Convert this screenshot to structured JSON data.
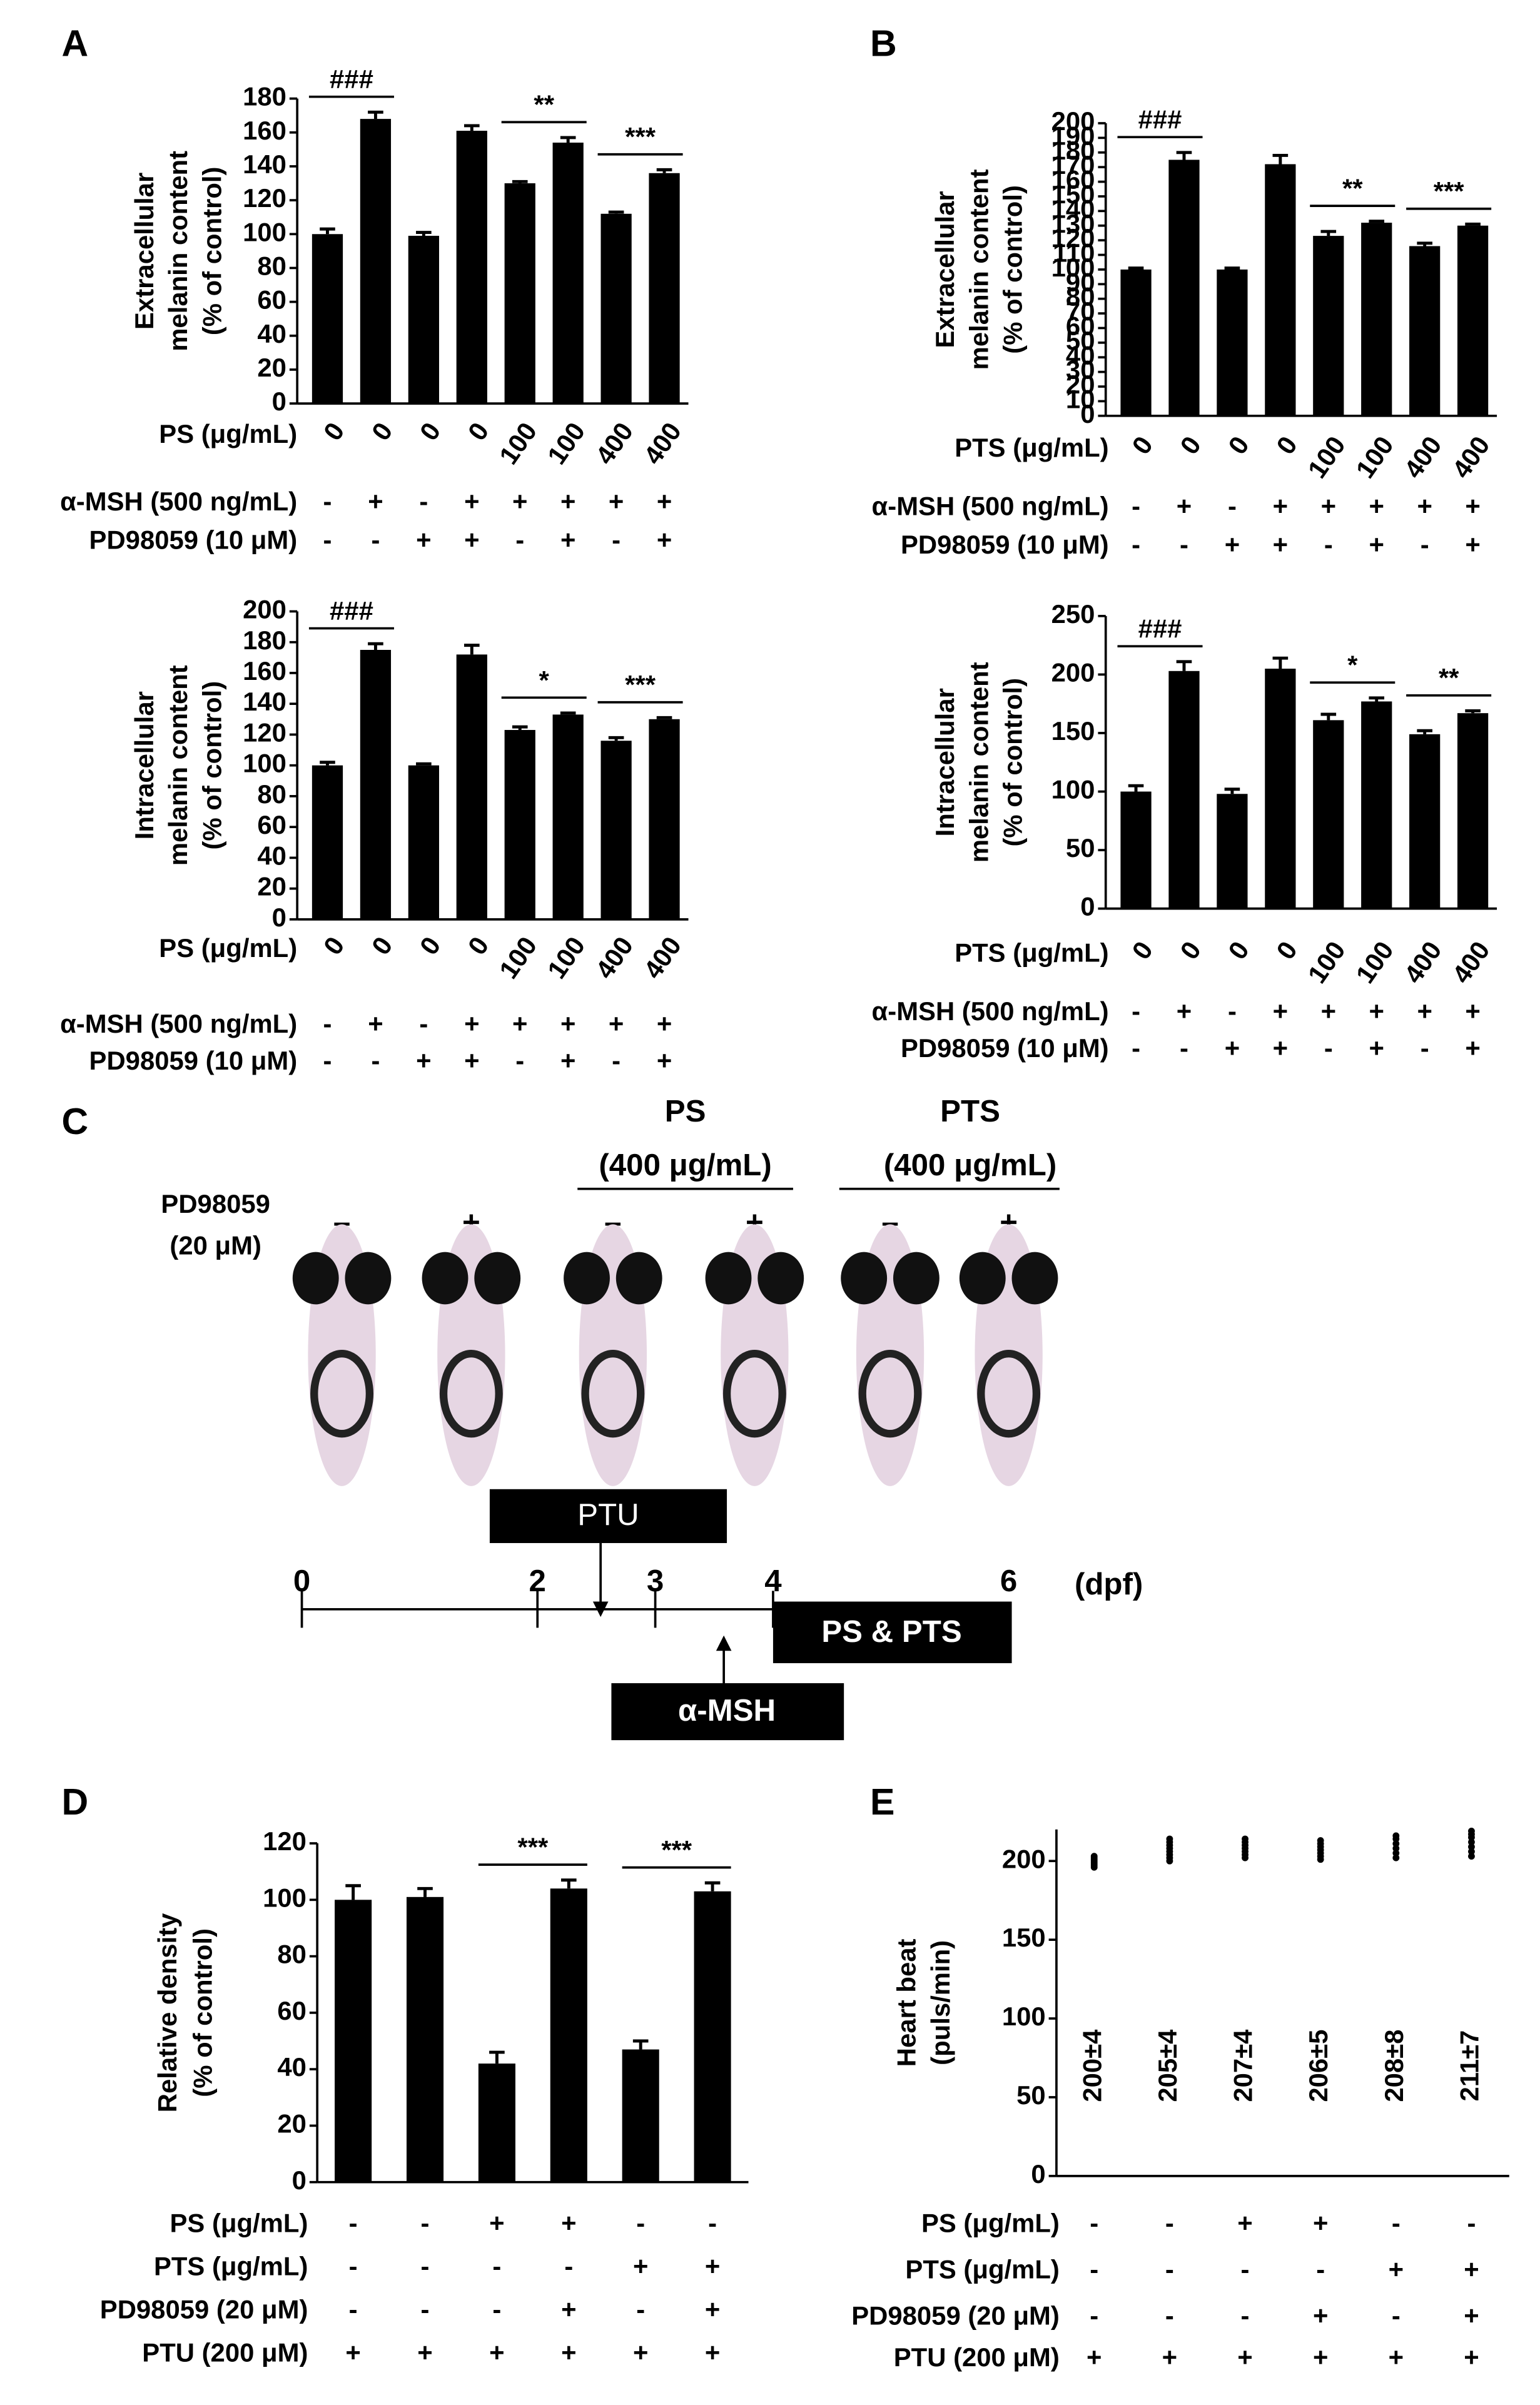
{
  "panel_labels": [
    "A",
    "B",
    "C",
    "D",
    "E"
  ],
  "chart_data": [
    {
      "type": "bar",
      "ylabel": [
        "Extracellular",
        "melanin content",
        "(% of control)"
      ],
      "color": "#000000",
      "values": [
        100,
        168,
        99,
        161,
        130,
        154,
        112,
        136
      ],
      "errors": [
        3,
        4,
        2,
        3,
        1,
        3,
        1,
        2
      ],
      "ylim": [
        0,
        180
      ],
      "yticks": [
        0,
        20,
        40,
        60,
        80,
        100,
        120,
        140,
        160,
        180
      ],
      "annotations": [
        {
          "label": "###",
          "pair": [
            0,
            1
          ]
        },
        {
          "label": "**",
          "pair": [
            4,
            5
          ]
        },
        {
          "label": "***",
          "pair": [
            6,
            7
          ]
        }
      ],
      "treatments": [
        {
          "label": "PS (μg/mL)",
          "values": [
            "0",
            "0",
            "0",
            "0",
            "100",
            "100",
            "400",
            "400"
          ]
        },
        {
          "label": "α-MSH (500 ng/mL)",
          "values": [
            "-",
            "+",
            "-",
            "+",
            "+",
            "+",
            "+",
            "+"
          ]
        },
        {
          "label": "PD98059 (10 μM)",
          "values": [
            "-",
            "-",
            "+",
            "+",
            "-",
            "+",
            "-",
            "+"
          ]
        }
      ]
    },
    {
      "type": "bar",
      "ylabel": [
        "Intracellular",
        "melanin content",
        "(% of control)"
      ],
      "color": "#000000",
      "values": [
        100,
        175,
        100,
        172,
        123,
        133,
        116,
        130
      ],
      "errors": [
        2,
        4,
        1,
        6,
        2,
        1,
        2,
        1
      ],
      "ylim": [
        0,
        200
      ],
      "yticks": [
        0,
        20,
        40,
        60,
        80,
        100,
        120,
        140,
        160,
        180,
        200
      ],
      "annotations": [
        {
          "label": "###",
          "pair": [
            0,
            1
          ]
        },
        {
          "label": "*",
          "pair": [
            4,
            5
          ]
        },
        {
          "label": "***",
          "pair": [
            6,
            7
          ]
        }
      ],
      "treatments": [
        {
          "label": "PS (μg/mL)",
          "values": [
            "0",
            "0",
            "0",
            "0",
            "100",
            "100",
            "400",
            "400"
          ]
        },
        {
          "label": "α-MSH (500 ng/mL)",
          "values": [
            "-",
            "+",
            "-",
            "+",
            "+",
            "+",
            "+",
            "+"
          ]
        },
        {
          "label": "PD98059 (10 μM)",
          "values": [
            "-",
            "-",
            "+",
            "+",
            "-",
            "+",
            "-",
            "+"
          ]
        }
      ]
    },
    {
      "type": "bar",
      "ylabel": [
        "Extracellular",
        "melanin content",
        "(% of control)"
      ],
      "color": "#000000",
      "values": [
        100,
        175,
        100,
        172,
        123,
        132,
        116,
        130
      ],
      "errors": [
        1,
        5,
        1,
        6,
        3,
        1,
        2,
        1
      ],
      "ylim": [
        0,
        200
      ],
      "yticks": [
        0,
        10,
        20,
        30,
        40,
        50,
        60,
        70,
        80,
        90,
        100,
        110,
        120,
        130,
        140,
        150,
        160,
        170,
        180,
        190,
        200
      ],
      "annotations": [
        {
          "label": "###",
          "pair": [
            0,
            1
          ]
        },
        {
          "label": "**",
          "pair": [
            4,
            5
          ]
        },
        {
          "label": "***",
          "pair": [
            6,
            7
          ]
        }
      ],
      "treatments": [
        {
          "label": "PTS (μg/mL)",
          "values": [
            "0",
            "0",
            "0",
            "0",
            "100",
            "100",
            "400",
            "400"
          ]
        },
        {
          "label": "α-MSH (500 ng/mL)",
          "values": [
            "-",
            "+",
            "-",
            "+",
            "+",
            "+",
            "+",
            "+"
          ]
        },
        {
          "label": "PD98059 (10 μM)",
          "values": [
            "-",
            "-",
            "+",
            "+",
            "-",
            "+",
            "-",
            "+"
          ]
        }
      ]
    },
    {
      "type": "bar",
      "ylabel": [
        "Intracellular",
        "melanin content",
        "(% of control)"
      ],
      "color": "#000000",
      "values": [
        100,
        203,
        98,
        205,
        161,
        177,
        149,
        167
      ],
      "errors": [
        5,
        8,
        4,
        9,
        5,
        3,
        3,
        2
      ],
      "ylim": [
        0,
        250
      ],
      "yticks": [
        0,
        50,
        100,
        150,
        200,
        250
      ],
      "annotations": [
        {
          "label": "###",
          "pair": [
            0,
            1
          ]
        },
        {
          "label": "*",
          "pair": [
            4,
            5
          ]
        },
        {
          "label": "**",
          "pair": [
            6,
            7
          ]
        }
      ],
      "treatments": [
        {
          "label": "PTS (μg/mL)",
          "values": [
            "0",
            "0",
            "0",
            "0",
            "100",
            "100",
            "400",
            "400"
          ]
        },
        {
          "label": "α-MSH (500 ng/mL)",
          "values": [
            "-",
            "+",
            "-",
            "+",
            "+",
            "+",
            "+",
            "+"
          ]
        },
        {
          "label": "PD98059 (10 μM)",
          "values": [
            "-",
            "-",
            "+",
            "+",
            "-",
            "+",
            "-",
            "+"
          ]
        }
      ]
    },
    {
      "type": "bar",
      "ylabel": [
        "Relative density",
        "(% of control)"
      ],
      "color": "#000000",
      "values": [
        100,
        101,
        42,
        104,
        47,
        103
      ],
      "errors": [
        5,
        3,
        4,
        3,
        3,
        3
      ],
      "ylim": [
        0,
        120
      ],
      "yticks": [
        0,
        20,
        40,
        60,
        80,
        100,
        120
      ],
      "annotations": [
        {
          "label": "***",
          "pair": [
            2,
            3
          ]
        },
        {
          "label": "***",
          "pair": [
            4,
            5
          ]
        }
      ],
      "treatments": [
        {
          "label": "PS (μg/mL)",
          "values": [
            "-",
            "-",
            "+",
            "+",
            "-",
            "-"
          ]
        },
        {
          "label": "PTS (μg/mL)",
          "values": [
            "-",
            "-",
            "-",
            "-",
            "+",
            "+"
          ]
        },
        {
          "label": "PD98059 (20 μM)",
          "values": [
            "-",
            "-",
            "-",
            "+",
            "-",
            "+"
          ]
        },
        {
          "label": "PTU (200 μM)",
          "values": [
            "+",
            "+",
            "+",
            "+",
            "+",
            "+"
          ]
        }
      ]
    },
    {
      "type": "strip",
      "ylabel": [
        "Heart beat",
        "(puls/min)"
      ],
      "color": "#000000",
      "points": [
        [
          196,
          197,
          198,
          199,
          200,
          201,
          202,
          203
        ],
        [
          200,
          202,
          204,
          206,
          208,
          210,
          212,
          214
        ],
        [
          202,
          204,
          206,
          208,
          210,
          212,
          214
        ],
        [
          201,
          203,
          205,
          207,
          209,
          211,
          213
        ],
        [
          202,
          205,
          208,
          211,
          214,
          216
        ],
        [
          203,
          206,
          209,
          212,
          215,
          217,
          219
        ]
      ],
      "values": [
        200,
        205,
        207,
        206,
        208,
        211
      ],
      "value_labels": [
        "200±4",
        "205±4",
        "207±4",
        "206±5",
        "208±8",
        "211±7"
      ],
      "ylim": [
        0,
        220
      ],
      "yticks": [
        0,
        50,
        100,
        150,
        200
      ],
      "treatments": [
        {
          "label": "PS (μg/mL)",
          "values": [
            "-",
            "-",
            "+",
            "+",
            "-",
            "-"
          ]
        },
        {
          "label": "PTS (μg/mL)",
          "values": [
            "-",
            "-",
            "-",
            "-",
            "+",
            "+"
          ]
        },
        {
          "label": "PD98059 (20 μM)",
          "values": [
            "-",
            "-",
            "-",
            "+",
            "-",
            "+"
          ]
        },
        {
          "label": "PTU (200 μM)",
          "values": [
            "+",
            "+",
            "+",
            "+",
            "+",
            "+"
          ]
        }
      ]
    }
  ],
  "panel_c": {
    "treatment": [
      "PD98059",
      "(20 μM)"
    ],
    "groups": [
      {
        "label": [
          "PS",
          "(400 μg/mL)"
        ]
      },
      {
        "label": [
          "PTS",
          "(400 μg/mL)"
        ]
      }
    ],
    "signs": [
      "–",
      "+",
      "–",
      "+",
      "–",
      "+"
    ],
    "timeline": {
      "days": [
        0,
        2,
        3,
        4,
        6
      ],
      "unit": "(dpf)",
      "boxes": {
        "ptu": "PTU",
        "msh": "α-MSH",
        "treat": "PS & PTS"
      }
    }
  }
}
